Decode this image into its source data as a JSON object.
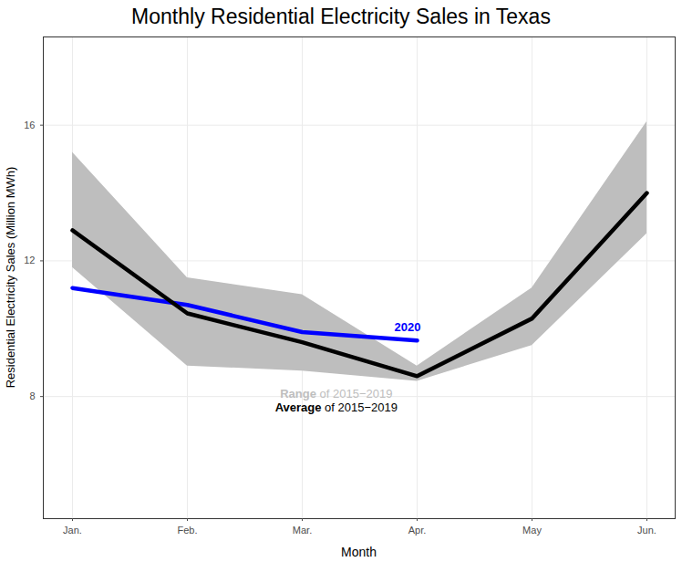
{
  "chart_data": {
    "type": "line",
    "title": "Monthly Residential Electricity Sales in Texas",
    "xlabel": "Month",
    "ylabel": "Residential Electricity Sales (Million MWh)",
    "categories": [
      "Jan.",
      "Feb.",
      "Mar.",
      "Apr.",
      "May",
      "Jun."
    ],
    "series": [
      {
        "name": "2020",
        "color": "#0000ff",
        "values": [
          11.2,
          10.7,
          9.9,
          9.65,
          null,
          null
        ]
      },
      {
        "name": "Average of 2015−2019",
        "color": "#000000",
        "values": [
          12.9,
          10.45,
          9.6,
          8.6,
          10.3,
          14.0
        ]
      }
    ],
    "range": {
      "name": "Range of 2015−2019",
      "color": "#bebebe",
      "low": [
        11.8,
        8.9,
        8.75,
        8.45,
        9.5,
        12.8
      ],
      "high": [
        15.2,
        11.5,
        11.0,
        8.9,
        11.2,
        16.1
      ]
    },
    "ylim": [
      4.4,
      18.6
    ],
    "yticks": [
      8,
      12,
      16
    ],
    "grid": true
  }
}
